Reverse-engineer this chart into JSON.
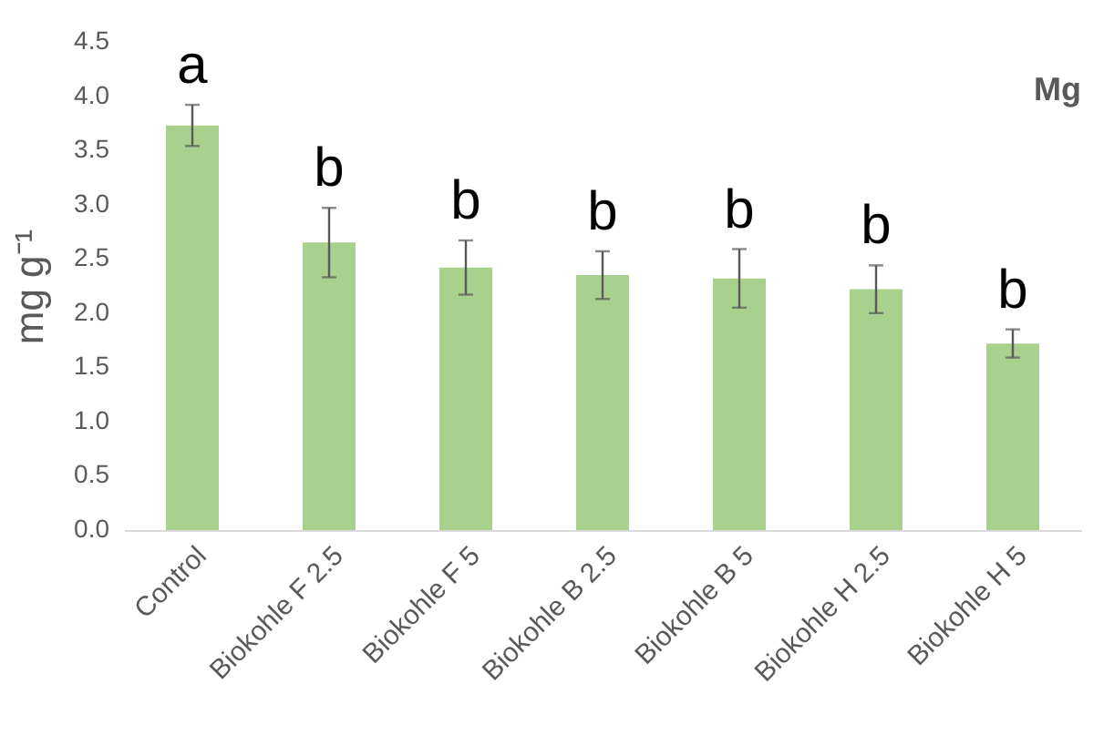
{
  "chart_data": {
    "type": "bar",
    "ylabel": "mg g⁻¹",
    "categories": [
      "Control",
      "Biokohle F 2.5",
      "Biokohle F 5",
      "Biokohle B 2.5",
      "Biokohle B 5",
      "Biokohle H 2.5",
      "Biokohle H 5"
    ],
    "values": [
      3.73,
      2.65,
      2.42,
      2.35,
      2.32,
      2.22,
      1.72
    ],
    "errors": [
      0.19,
      0.32,
      0.25,
      0.22,
      0.27,
      0.22,
      0.13
    ],
    "color": "#a9d18e",
    "ylim": [
      0,
      4.5
    ],
    "yticks": [
      {
        "value": 0,
        "label": "0.0"
      },
      {
        "value": 0.5,
        "label": "0.5"
      },
      {
        "value": 1,
        "label": "1.0"
      },
      {
        "value": 1.5,
        "label": "1.5"
      },
      {
        "value": 2,
        "label": "2.0"
      },
      {
        "value": 2.5,
        "label": "2.5"
      },
      {
        "value": 3,
        "label": "3.0"
      },
      {
        "value": 3.5,
        "label": "3.5"
      },
      {
        "value": 4,
        "label": "4.0"
      },
      {
        "value": 4.5,
        "label": "4.5"
      }
    ],
    "grid": false,
    "annotations": [
      "Mg",
      "a",
      "b",
      "b",
      "b",
      "b",
      "b",
      "b"
    ]
  }
}
